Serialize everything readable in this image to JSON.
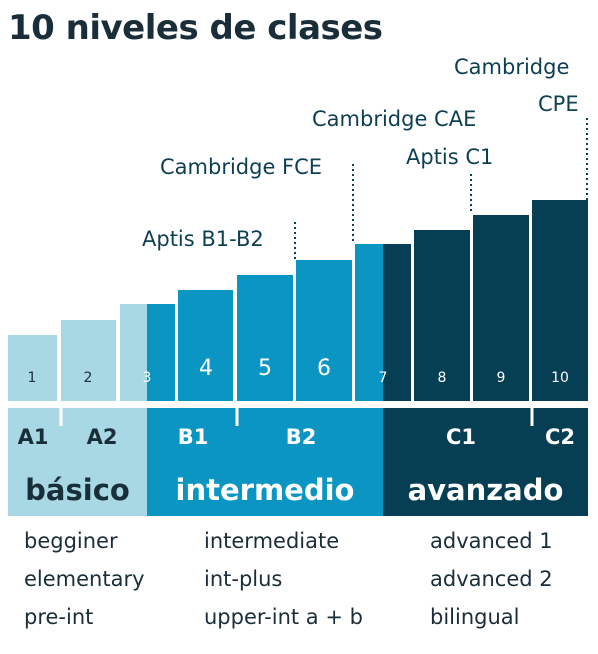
{
  "title": "10 niveles de clases",
  "annotations": {
    "aptis_b1b2": "Aptis B1-B2",
    "cambridge_fce": "Cambridge FCE",
    "cambridge_cae": "Cambridge CAE",
    "aptis_c1": "Aptis C1",
    "cambridge_cpe_1": "Cambridge",
    "cambridge_cpe_2": "CPE"
  },
  "bars": [
    "1",
    "2",
    "3",
    "4",
    "5",
    "6",
    "7",
    "8",
    "9",
    "10"
  ],
  "levels": [
    "A1",
    "A2",
    "B1",
    "B2",
    "C1",
    "C2"
  ],
  "groups": {
    "basico": "básico",
    "intermedio": "intermedio",
    "avanzado": "avanzado"
  },
  "sublevels": {
    "basico": [
      "begginer",
      "elementary",
      "pre-int"
    ],
    "intermedio": [
      "intermediate",
      "int-plus",
      "upper-int a + b"
    ],
    "avanzado": [
      "advanced 1",
      "advanced 2",
      "bilingual"
    ]
  },
  "colors": {
    "light": "#a8d8e4",
    "mid": "#0b95c2",
    "dark": "#063f54",
    "title": "#1a2e39"
  }
}
